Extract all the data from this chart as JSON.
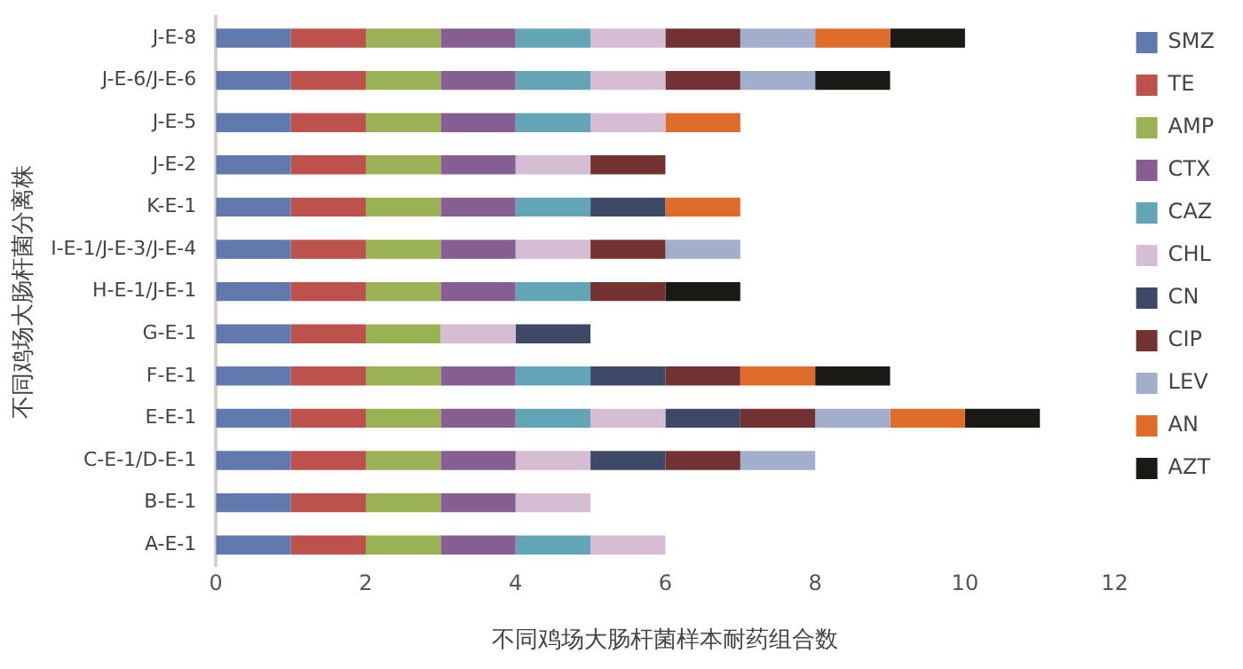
{
  "chart_data": {
    "type": "bar",
    "orientation": "horizontal",
    "stacked": true,
    "xlabel": "不同鸡场大肠杆菌样本耐药组合数",
    "ylabel": "不同鸡场大肠杆菌分离株",
    "categories": [
      "J-E-8",
      "J-E-6/J-E-6",
      "J-E-5",
      "J-E-2",
      "K-E-1",
      "I-E-1/J-E-3/J-E-4",
      "H-E-1/J-E-1",
      "G-E-1",
      "F-E-1",
      "E-E-1",
      "C-E-1/D-E-1",
      "B-E-1",
      "A-E-1"
    ],
    "xlim": [
      0,
      12
    ],
    "xticks": [
      0,
      2,
      4,
      6,
      8,
      10,
      12
    ],
    "grid": false,
    "legend": "right",
    "series": [
      {
        "name": "SMZ",
        "color": "#6179ad",
        "values": [
          1,
          1,
          1,
          1,
          1,
          1,
          1,
          1,
          1,
          1,
          1,
          1,
          1
        ]
      },
      {
        "name": "TE",
        "color": "#bd514c",
        "values": [
          1,
          1,
          1,
          1,
          1,
          1,
          1,
          1,
          1,
          1,
          1,
          1,
          1
        ]
      },
      {
        "name": "AMP",
        "color": "#9bb155",
        "values": [
          1,
          1,
          1,
          1,
          1,
          1,
          1,
          1,
          1,
          1,
          1,
          1,
          1
        ]
      },
      {
        "name": "CTX",
        "color": "#865f92",
        "values": [
          1,
          1,
          1,
          1,
          1,
          1,
          1,
          null,
          1,
          1,
          1,
          1,
          1
        ]
      },
      {
        "name": "CAZ",
        "color": "#63a5b6",
        "values": [
          1,
          1,
          1,
          null,
          1,
          null,
          1,
          null,
          1,
          1,
          null,
          null,
          1
        ]
      },
      {
        "name": "CHL",
        "color": "#d5bdd4",
        "values": [
          1,
          1,
          1,
          1,
          null,
          1,
          null,
          1,
          null,
          1,
          1,
          1,
          1
        ]
      },
      {
        "name": "CN",
        "color": "#3d4966",
        "values": [
          null,
          null,
          null,
          null,
          1,
          null,
          null,
          1,
          1,
          1,
          1,
          null,
          null
        ]
      },
      {
        "name": "CIP",
        "color": "#733232",
        "values": [
          1,
          1,
          null,
          1,
          null,
          1,
          1,
          null,
          1,
          1,
          1,
          null,
          null
        ]
      },
      {
        "name": "LEV",
        "color": "#a1afcd",
        "values": [
          1,
          1,
          null,
          null,
          null,
          1,
          null,
          null,
          null,
          1,
          1,
          null,
          null
        ]
      },
      {
        "name": "AN",
        "color": "#e06c2c",
        "values": [
          1,
          null,
          1,
          null,
          1,
          null,
          null,
          null,
          1,
          1,
          null,
          null,
          null
        ]
      },
      {
        "name": "AZT",
        "color": "#1a1915",
        "values": [
          1,
          1,
          null,
          null,
          null,
          null,
          1,
          null,
          1,
          1,
          null,
          null,
          null
        ]
      }
    ]
  }
}
